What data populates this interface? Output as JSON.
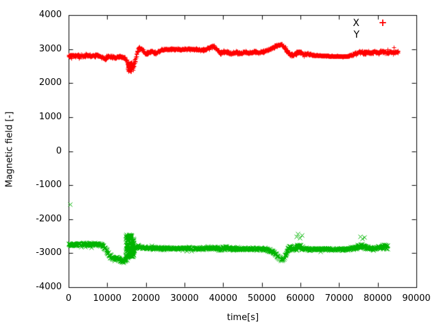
{
  "figure": {
    "background": "#ffffff",
    "border_color": "#000000",
    "text_color": "#000000"
  },
  "legend": {
    "entries": [
      {
        "label": "X",
        "marker": "+",
        "color": "#ff0000",
        "marker_visible": true
      },
      {
        "label": "Y",
        "marker": "×",
        "color": "#00b400",
        "marker_visible": false
      }
    ]
  },
  "chart_data": {
    "type": "scatter",
    "title": "",
    "xlabel": "time[s]",
    "ylabel": "Magnetic field [-]",
    "xlim": [
      0,
      90000
    ],
    "ylim": [
      -4000,
      4000
    ],
    "x_ticks": [
      0,
      10000,
      20000,
      30000,
      40000,
      50000,
      60000,
      70000,
      80000,
      90000
    ],
    "y_ticks": [
      -4000,
      -3000,
      -2000,
      -1000,
      0,
      1000,
      2000,
      3000,
      4000
    ],
    "grid": false,
    "legend_position": "top-right",
    "sample_interval_s": 60,
    "series": [
      {
        "name": "X",
        "marker": "+",
        "color": "#ff0000",
        "t_end": 85300,
        "control_points": [
          [
            0,
            2800,
            50
          ],
          [
            1500,
            2820,
            45
          ],
          [
            3000,
            2790,
            50
          ],
          [
            4500,
            2830,
            45
          ],
          [
            6000,
            2800,
            45
          ],
          [
            7500,
            2820,
            45
          ],
          [
            8700,
            2760,
            50
          ],
          [
            9300,
            2710,
            55
          ],
          [
            10000,
            2780,
            50
          ],
          [
            11000,
            2770,
            50
          ],
          [
            12000,
            2750,
            55
          ],
          [
            13000,
            2780,
            50
          ],
          [
            14000,
            2760,
            55
          ],
          [
            14800,
            2720,
            60
          ],
          [
            15400,
            2550,
            70
          ],
          [
            15900,
            2460,
            60
          ],
          [
            16400,
            2440,
            60
          ],
          [
            16900,
            2540,
            70
          ],
          [
            17400,
            2750,
            70
          ],
          [
            18100,
            3040,
            50
          ],
          [
            18800,
            3010,
            45
          ],
          [
            19600,
            2880,
            45
          ],
          [
            20500,
            2900,
            45
          ],
          [
            21500,
            2940,
            45
          ],
          [
            22500,
            2880,
            45
          ],
          [
            23500,
            2950,
            40
          ],
          [
            24500,
            2990,
            35
          ],
          [
            25500,
            3000,
            30
          ],
          [
            27000,
            3000,
            28
          ],
          [
            29000,
            3000,
            28
          ],
          [
            31000,
            3005,
            28
          ],
          [
            33000,
            3000,
            30
          ],
          [
            34500,
            2965,
            35
          ],
          [
            36000,
            3030,
            45
          ],
          [
            37200,
            3100,
            50
          ],
          [
            38300,
            3000,
            50
          ],
          [
            39300,
            2870,
            50
          ],
          [
            40300,
            2930,
            50
          ],
          [
            41300,
            2900,
            55
          ],
          [
            42300,
            2870,
            50
          ],
          [
            43300,
            2910,
            45
          ],
          [
            44300,
            2880,
            45
          ],
          [
            45500,
            2920,
            40
          ],
          [
            46800,
            2890,
            40
          ],
          [
            48000,
            2930,
            40
          ],
          [
            49300,
            2900,
            40
          ],
          [
            50500,
            2940,
            40
          ],
          [
            51800,
            2990,
            40
          ],
          [
            53000,
            3050,
            40
          ],
          [
            54200,
            3130,
            40
          ],
          [
            55200,
            3120,
            45
          ],
          [
            56200,
            2990,
            50
          ],
          [
            57200,
            2860,
            50
          ],
          [
            58200,
            2820,
            55
          ],
          [
            59000,
            2890,
            60
          ],
          [
            59800,
            2930,
            55
          ],
          [
            60800,
            2850,
            50
          ],
          [
            62000,
            2860,
            40
          ],
          [
            63200,
            2830,
            30
          ],
          [
            64500,
            2815,
            14
          ],
          [
            66500,
            2805,
            12
          ],
          [
            68500,
            2795,
            12
          ],
          [
            70500,
            2790,
            12
          ],
          [
            72300,
            2790,
            16
          ],
          [
            73300,
            2830,
            40
          ],
          [
            74300,
            2870,
            50
          ],
          [
            75300,
            2930,
            55
          ],
          [
            76200,
            2890,
            55
          ],
          [
            77200,
            2920,
            50
          ],
          [
            78200,
            2890,
            50
          ],
          [
            79200,
            2935,
            50
          ],
          [
            80200,
            2890,
            55
          ],
          [
            81200,
            2945,
            55
          ],
          [
            82200,
            2890,
            50
          ],
          [
            83200,
            2925,
            50
          ],
          [
            84300,
            2900,
            50
          ],
          [
            85300,
            2930,
            45
          ]
        ],
        "burst": {
          "t_min": 15300,
          "t_max": 16700,
          "v_min": 2340,
          "v_max": 2620,
          "n": 60
        },
        "outliers": [
          [
            84200,
            3060
          ]
        ]
      },
      {
        "name": "Y",
        "marker": "x",
        "color": "#00b400",
        "t_end": 82600,
        "control_points": [
          [
            0,
            -2740,
            55
          ],
          [
            1500,
            -2730,
            50
          ],
          [
            3000,
            -2740,
            50
          ],
          [
            4500,
            -2735,
            50
          ],
          [
            6000,
            -2740,
            50
          ],
          [
            7500,
            -2735,
            50
          ],
          [
            8800,
            -2760,
            55
          ],
          [
            9500,
            -2870,
            70
          ],
          [
            10200,
            -3000,
            80
          ],
          [
            11000,
            -3120,
            85
          ],
          [
            11800,
            -3160,
            80
          ],
          [
            12600,
            -3120,
            75
          ],
          [
            13300,
            -3190,
            75
          ],
          [
            14100,
            -3240,
            70
          ],
          [
            14700,
            -3180,
            80
          ],
          [
            17000,
            -2830,
            60
          ],
          [
            18000,
            -2800,
            55
          ],
          [
            19000,
            -2830,
            50
          ],
          [
            20500,
            -2840,
            45
          ],
          [
            22000,
            -2845,
            45
          ],
          [
            24000,
            -2855,
            40
          ],
          [
            26000,
            -2860,
            40
          ],
          [
            28000,
            -2850,
            40
          ],
          [
            30000,
            -2845,
            45
          ],
          [
            32000,
            -2855,
            40
          ],
          [
            34000,
            -2860,
            40
          ],
          [
            36000,
            -2850,
            45
          ],
          [
            38000,
            -2845,
            50
          ],
          [
            39500,
            -2870,
            55
          ],
          [
            40800,
            -2830,
            60
          ],
          [
            42000,
            -2875,
            50
          ],
          [
            43500,
            -2860,
            45
          ],
          [
            45000,
            -2870,
            40
          ],
          [
            46500,
            -2865,
            40
          ],
          [
            48000,
            -2870,
            40
          ],
          [
            49500,
            -2870,
            42
          ],
          [
            51000,
            -2885,
            45
          ],
          [
            52300,
            -2920,
            50
          ],
          [
            53400,
            -3010,
            60
          ],
          [
            54300,
            -3140,
            65
          ],
          [
            55100,
            -3190,
            60
          ],
          [
            55900,
            -3100,
            70
          ],
          [
            56700,
            -2900,
            80
          ],
          [
            57400,
            -2820,
            85
          ],
          [
            58200,
            -2870,
            80
          ],
          [
            59000,
            -2830,
            90
          ],
          [
            59800,
            -2780,
            95
          ],
          [
            60700,
            -2850,
            65
          ],
          [
            62000,
            -2875,
            45
          ],
          [
            63500,
            -2880,
            40
          ],
          [
            65000,
            -2870,
            40
          ],
          [
            66500,
            -2880,
            40
          ],
          [
            68000,
            -2875,
            40
          ],
          [
            69500,
            -2880,
            40
          ],
          [
            71000,
            -2870,
            42
          ],
          [
            72500,
            -2865,
            45
          ],
          [
            73800,
            -2845,
            55
          ],
          [
            74800,
            -2820,
            65
          ],
          [
            75700,
            -2790,
            75
          ],
          [
            76500,
            -2800,
            70
          ],
          [
            77300,
            -2830,
            60
          ],
          [
            78200,
            -2845,
            52
          ],
          [
            79100,
            -2850,
            52
          ],
          [
            80000,
            -2840,
            55
          ],
          [
            81000,
            -2815,
            60
          ],
          [
            81900,
            -2790,
            90
          ],
          [
            82600,
            -2830,
            100
          ]
        ],
        "burst": {
          "t_min": 14750,
          "t_max": 16900,
          "v_min": -3100,
          "v_max": -2450,
          "n": 150
        },
        "outliers": [
          [
            300,
            -1555
          ],
          [
            58900,
            -2500
          ],
          [
            59300,
            -2430
          ],
          [
            59900,
            -2540
          ],
          [
            60300,
            -2470
          ],
          [
            75500,
            -2500
          ],
          [
            76000,
            -2560
          ],
          [
            76500,
            -2520
          ]
        ]
      }
    ]
  }
}
